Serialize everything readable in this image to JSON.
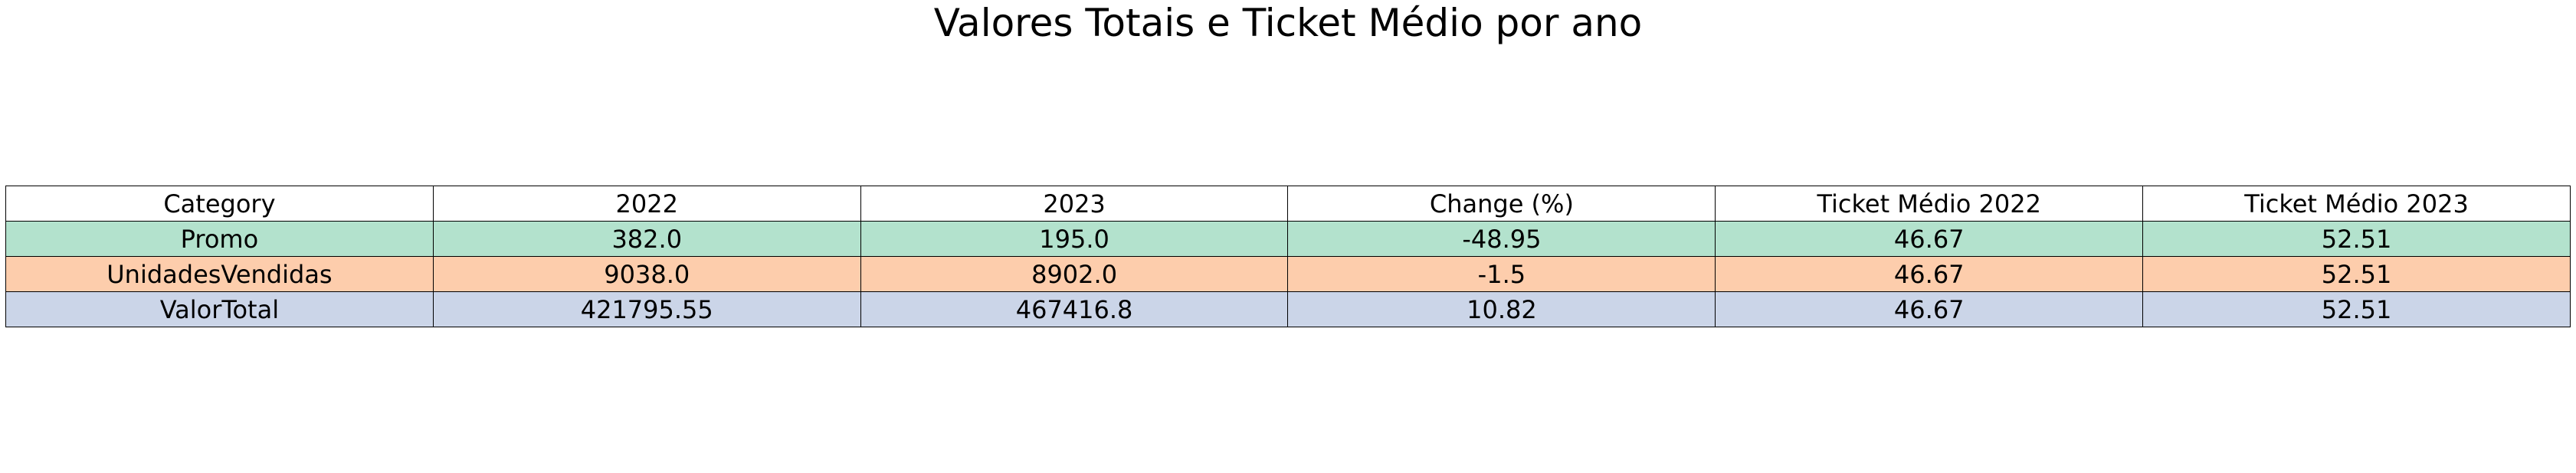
{
  "chart_data": {
    "type": "table",
    "title": "Valores Totais e Ticket Médio por ano",
    "columns": [
      "Category",
      "2022",
      "2023",
      "Change (%)",
      "Ticket Médio 2022",
      "Ticket Médio 2023"
    ],
    "header_color": "#ffffff",
    "rows": [
      {
        "cells": [
          "Promo",
          "382.0",
          "195.0",
          "-48.95",
          "46.67",
          "52.51"
        ],
        "color": "#b3e2cd"
      },
      {
        "cells": [
          "UnidadesVendidas",
          "9038.0",
          "8902.0",
          "-1.5",
          "46.67",
          "52.51"
        ],
        "color": "#fdcdac"
      },
      {
        "cells": [
          "ValorTotal",
          "421795.55",
          "467416.8",
          "10.82",
          "46.67",
          "52.51"
        ],
        "color": "#cbd5e8"
      }
    ]
  }
}
